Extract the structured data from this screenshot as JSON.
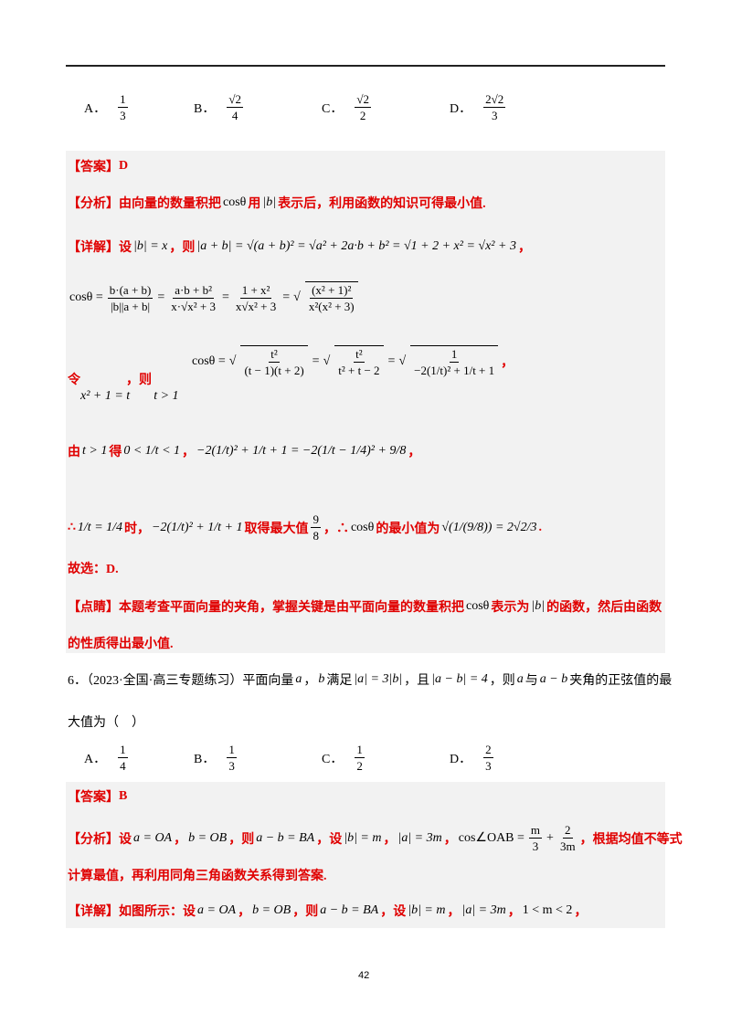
{
  "q5": {
    "options": [
      {
        "label": "A．",
        "num": "1",
        "den": "3"
      },
      {
        "label": "B．",
        "num": "√2",
        "den": "4"
      },
      {
        "label": "C．",
        "num": "√2",
        "den": "2"
      },
      {
        "label": "D．",
        "num": "2√2",
        "den": "3"
      }
    ],
    "answer_tag": "【答案】",
    "answer": "D",
    "analysis_tag": "【分析】",
    "analysis_1": "由向量的数量积把",
    "analysis_cos": "cosθ",
    "analysis_2": "用",
    "analysis_b": "|b|",
    "analysis_3": "表示后，利用函数的知识可得最小值.",
    "detail_tag": "【详解】",
    "detail_set": "设",
    "detail_bx": "|b| = x",
    "detail_then": "，则",
    "detail_expr": "|a + b| = √(a + b)² = √a² + 2a·b + b² = √1 + 2 + x² = √x² + 3",
    "detail_comma": "，",
    "cos_lhs": "cosθ =",
    "cos_f1_num": "b·(a + b)",
    "cos_f1_den": "|b||a + b|",
    "cos_f2_num": "a·b + b²",
    "cos_f2_den": "x·√x² + 3",
    "cos_f3_num": "1 + x²",
    "cos_f3_den": "x√x² + 3",
    "cos_f4_num": "(x² + 1)²",
    "cos_f4_den": "x²(x² + 3)",
    "eq": "=",
    "let_tag": "令",
    "let_expr": "x² + 1 = t",
    "let_then": "，则",
    "let_cond": "t > 1",
    "t_lhs": "cosθ =",
    "t_f1_num": "t²",
    "t_f1_den": "(t − 1)(t + 2)",
    "t_f2_num": "t²",
    "t_f2_den": "t² + t − 2",
    "t_f3_num": "1",
    "t_f3_den": "−2(1/t)² + 1/t + 1",
    "t_comma": "，",
    "by_tag": "由",
    "by_cond": "t > 1",
    "by_get": "得",
    "by_ineq": "0 < 1/t < 1",
    "by_comma": "，",
    "by_expr": "−2(1/t)² + 1/t + 1 = −2(1/t − 1/4)² + 9/8",
    "by_end": "，",
    "therefore_1": "∴",
    "ther_expr": "1/t = 1/4",
    "ther_when": "时，",
    "ther_fn": "−2(1/t)² + 1/t + 1",
    "ther_max": "取得最大值",
    "ther_max_num": "9",
    "ther_max_den": "8",
    "ther_2": "，∴",
    "ther_cos": "cosθ",
    "ther_min": "的最小值为",
    "ther_val": "√(1/(9/8)) = 2√2/3",
    "ther_end": ".",
    "choose": "故选：D.",
    "comment_tag": "【点睛】",
    "comment_1": "本题考查平面向量的夹角，掌握关键是由平面向量的数量积把",
    "comment_cos": "cosθ",
    "comment_2": "表示为",
    "comment_b": "|b|",
    "comment_3": "的函数，然后由函数",
    "comment_4": "的性质得出最小值."
  },
  "q6": {
    "line1": "6．（2023·全国·高三专题练习）平面向量",
    "a": "a",
    "sep": "，",
    "b": "b",
    "satisfy": "满足",
    "cond1": "|a| = 3|b|",
    "and": "，且",
    "cond2": "|a − b| = 4",
    "then": "，则",
    "a2": "a",
    "with": "与",
    "amb": "a − b",
    "rest": "夹角的正弦值的最",
    "line2": "大值为（　）",
    "options": [
      {
        "label": "A．",
        "num": "1",
        "den": "4"
      },
      {
        "label": "B．",
        "num": "1",
        "den": "3"
      },
      {
        "label": "C．",
        "num": "1",
        "den": "2"
      },
      {
        "label": "D．",
        "num": "2",
        "den": "3"
      }
    ],
    "answer_tag": "【答案】",
    "answer": "B",
    "analysis_tag": "【分析】",
    "an_set": "设",
    "an_a": "a = OA",
    "an_b": "b = OB",
    "an_then": "，则",
    "an_ab": "a − b = BA",
    "an_set2": "，设",
    "an_bm": "|b| = m",
    "an_am": "|a| = 3m",
    "an_cos": "cos∠OAB =",
    "an_f1_num": "m",
    "an_f1_den": "3",
    "an_plus": "+",
    "an_f2_num": "2",
    "an_f2_den": "3m",
    "an_rest": "，根据均值不等式",
    "an_line2": "计算最值，再利用同角三角函数关系得到答案.",
    "detail_tag": "【详解】",
    "de_1": "如图所示：设",
    "de_a": "a = OA",
    "de_b": "b = OB",
    "de_then": "，则",
    "de_ab": "a − b = BA",
    "de_set": "，设",
    "de_bm": "|b| = m",
    "de_am": "|a| = 3m",
    "de_range": "1 < m < 2",
    "comma": "，"
  },
  "page_number": "42"
}
